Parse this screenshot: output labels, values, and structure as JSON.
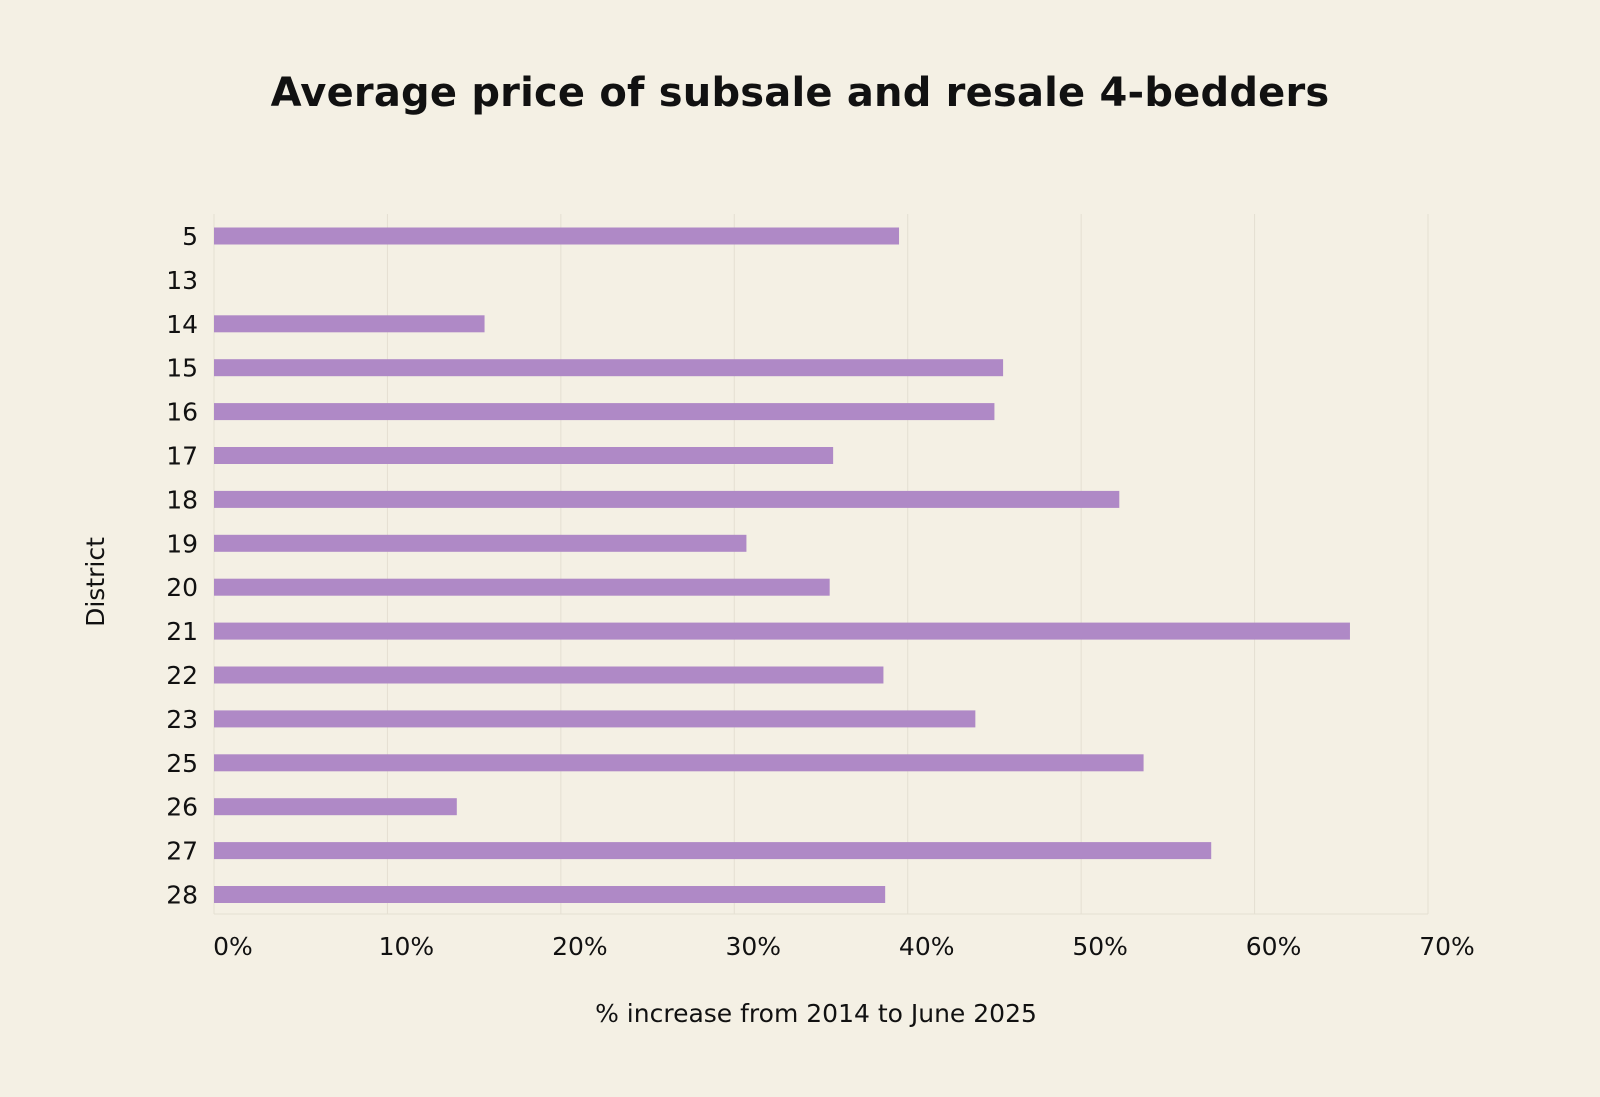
{
  "chart_data": {
    "type": "bar",
    "orientation": "horizontal",
    "title": "Average price of subsale and resale 4-bedders",
    "xlabel": "% increase from 2014 to June 2025",
    "ylabel": "District",
    "categories": [
      "5",
      "13",
      "14",
      "15",
      "16",
      "17",
      "18",
      "19",
      "20",
      "21",
      "22",
      "23",
      "25",
      "26",
      "27",
      "28"
    ],
    "values": [
      39.5,
      null,
      15.6,
      45.5,
      45.0,
      35.7,
      52.2,
      30.7,
      35.5,
      65.5,
      38.6,
      43.9,
      53.6,
      14.0,
      57.5,
      38.7
    ],
    "xlim": [
      0,
      70
    ],
    "x_ticks": [
      0,
      10,
      20,
      30,
      40,
      50,
      60,
      70
    ],
    "x_tick_labels": [
      "0%",
      "10%",
      "20%",
      "30%",
      "40%",
      "50%",
      "60%",
      "70%"
    ],
    "grid": "vertical",
    "bar_color": "#af89c6",
    "grid_color": "#e4dfd2"
  }
}
